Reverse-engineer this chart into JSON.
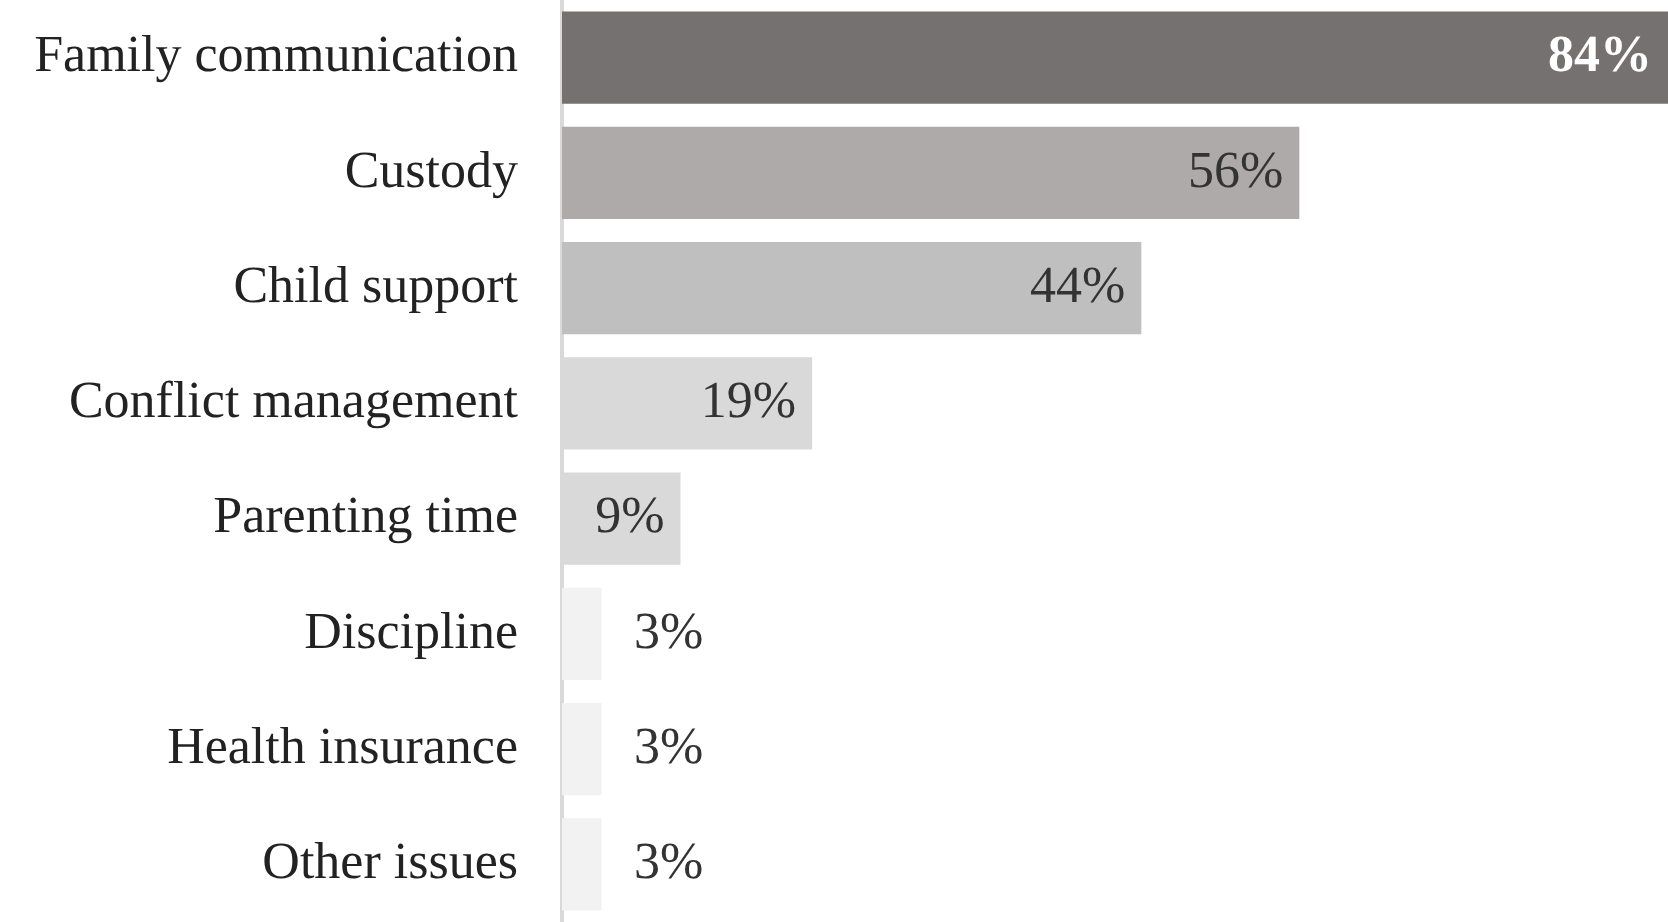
{
  "chart_data": {
    "type": "bar",
    "orientation": "horizontal",
    "categories": [
      "Family communication",
      "Custody",
      "Child support",
      "Conflict management",
      "Parenting time",
      "Discipline",
      "Health insurance",
      "Other issues"
    ],
    "values": [
      84,
      56,
      44,
      19,
      9,
      3,
      3,
      3
    ],
    "value_labels": [
      "84%",
      "56%",
      "44%",
      "19%",
      "9%",
      "3%",
      "3%",
      "3%"
    ],
    "colors": [
      "#767171",
      "#aeaaaa",
      "#bfbfbf",
      "#d9d9d9",
      "#d9d9d9",
      "#f2f2f2",
      "#f2f2f2",
      "#f2f2f2"
    ],
    "grid": false,
    "legend": false,
    "tick_labels": "y"
  }
}
